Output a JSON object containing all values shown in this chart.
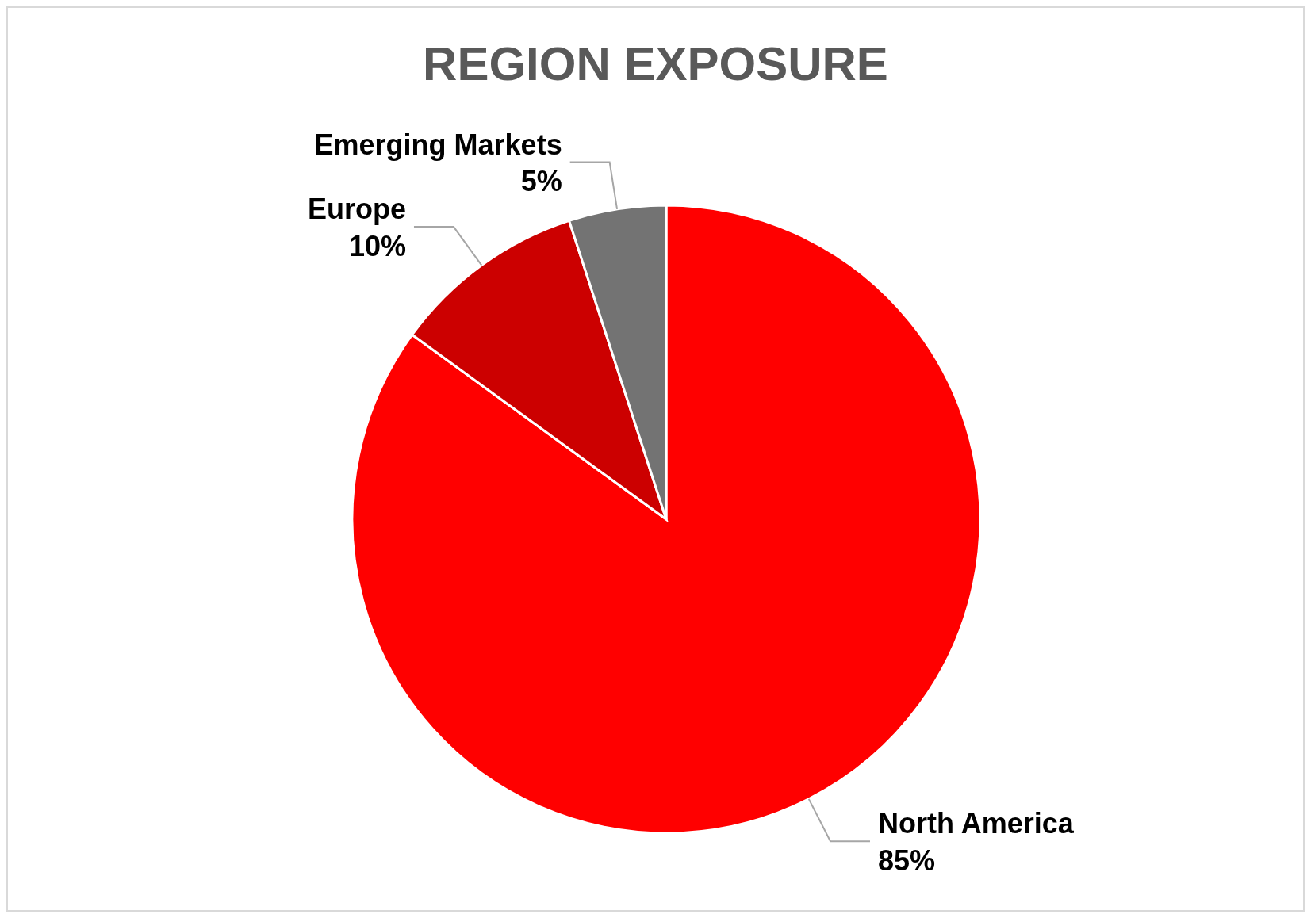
{
  "chart_data": {
    "type": "pie",
    "title": "REGION EXPOSURE",
    "categories": [
      "North America",
      "Europe",
      "Emerging Markets"
    ],
    "values": [
      85,
      10,
      5
    ],
    "colors": [
      "#ff0000",
      "#cc0000",
      "#737373"
    ],
    "value_labels": [
      "85%",
      "10%",
      "5%"
    ],
    "legend": false
  }
}
